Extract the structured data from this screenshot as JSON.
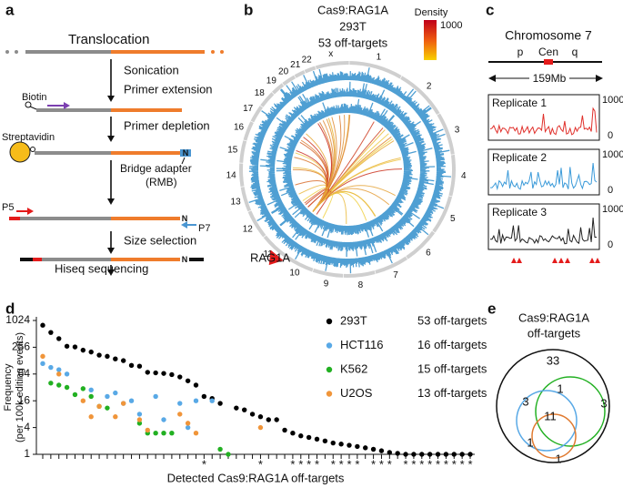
{
  "panel_labels": [
    "a",
    "b",
    "c",
    "d",
    "e"
  ],
  "panel_a": {
    "steps": [
      "Translocation",
      "Sonication",
      "Primer extension",
      "Primer depletion",
      "Size selection",
      "Hiseq sequencing"
    ],
    "labels": {
      "biotin": "Biotin",
      "streptavidin": "Streptavidin",
      "adapter": "Bridge adapter",
      "adapter_abbr": "(RMB)",
      "p5": "P5",
      "p7": "P7",
      "n": "N"
    }
  },
  "panel_b": {
    "title": [
      "Cas9:RAG1A",
      "293T",
      "53 off-targets"
    ],
    "legend_title": "Density",
    "legend_max": 1000,
    "chromosomes": [
      "1",
      "2",
      "3",
      "4",
      "5",
      "6",
      "7",
      "8",
      "9",
      "10",
      "11",
      "12",
      "13",
      "14",
      "15",
      "16",
      "17",
      "18",
      "19",
      "20",
      "21",
      "22",
      "x"
    ],
    "locus": "RAG1A"
  },
  "panel_c": {
    "title": "Chromosome 7",
    "arm_p": "p",
    "centromere": "Cen",
    "arm_q": "q",
    "length": "159Mb",
    "replicates": [
      {
        "name": "Replicate 1",
        "ymax": 1000,
        "ymin": 0
      },
      {
        "name": "Replicate 2",
        "ymax": 1000,
        "ymin": 0
      },
      {
        "name": "Replicate 3",
        "ymax": 1000,
        "ymin": 0
      }
    ]
  },
  "chart_data": {
    "type": "scatter",
    "categories": [
      null,
      null,
      null,
      null,
      null,
      null,
      null,
      null,
      null,
      null,
      null,
      null,
      null,
      null,
      null,
      null,
      null,
      null,
      null,
      null,
      null,
      null,
      null,
      null,
      null,
      null,
      null,
      null,
      null,
      null,
      null,
      null,
      null,
      null,
      null,
      null,
      null,
      null,
      null,
      null,
      null,
      null,
      null,
      null,
      null,
      null,
      null,
      null,
      null,
      null,
      null,
      null,
      null,
      null
    ],
    "series": [
      {
        "name": "293T",
        "count_label": "53 off-targets",
        "color": "#000000",
        "values": [
          800,
          550,
          400,
          270,
          260,
          220,
          200,
          170,
          160,
          140,
          128,
          100,
          96,
          70,
          68,
          66,
          62,
          55,
          45,
          36,
          20,
          18,
          14,
          null,
          11,
          10,
          8,
          7,
          6,
          6,
          3.5,
          3,
          2.6,
          2.4,
          2.2,
          2,
          1.8,
          1.7,
          1.6,
          1.5,
          1.4,
          1.3,
          1.2,
          1.1,
          1.05,
          1,
          1,
          1,
          1,
          1,
          1,
          1,
          1,
          1
        ]
      },
      {
        "name": "HCT116",
        "count_label": "16 off-targets",
        "color": "#59a9e6",
        "values": [
          110,
          90,
          80,
          64,
          null,
          null,
          28,
          null,
          20,
          24,
          14,
          16,
          8,
          null,
          20,
          6,
          null,
          14,
          4,
          16,
          null,
          16,
          null,
          null,
          null,
          null,
          null,
          null,
          null,
          null,
          null,
          null,
          null,
          null,
          null,
          null,
          null,
          null,
          null,
          null,
          null,
          null,
          null,
          null,
          null,
          null,
          null,
          null,
          null,
          null,
          null,
          null,
          null,
          null
        ]
      },
      {
        "name": "K562",
        "count_label": "15 off-targets",
        "color": "#22b022",
        "values": [
          null,
          40,
          36,
          32,
          22,
          30,
          20,
          12,
          11,
          null,
          null,
          null,
          5,
          3,
          3,
          3,
          3,
          null,
          null,
          null,
          null,
          null,
          1.3,
          1,
          null,
          null,
          null,
          null,
          null,
          null,
          null,
          null,
          null,
          null,
          null,
          null,
          null,
          null,
          null,
          null,
          null,
          null,
          null,
          null,
          null,
          null,
          null,
          null,
          null,
          null,
          null,
          null,
          null,
          null
        ]
      },
      {
        "name": "U2OS",
        "count_label": "13 off-targets",
        "color": "#f0953a",
        "values": [
          160,
          null,
          64,
          null,
          null,
          16,
          7,
          12,
          null,
          7,
          14,
          null,
          6,
          3.5,
          null,
          null,
          null,
          8,
          5,
          3,
          null,
          null,
          null,
          null,
          null,
          null,
          null,
          4,
          null,
          null,
          null,
          null,
          null,
          null,
          null,
          null,
          null,
          null,
          null,
          null,
          null,
          null,
          null,
          null,
          null,
          null,
          null,
          null,
          null,
          null,
          null,
          null,
          null,
          null
        ]
      }
    ],
    "ylabel": [
      "Frequency",
      "(per 100k editing events)"
    ],
    "xlabel": "Detected Cas9:RAG1A off-targets",
    "ylim": [
      1,
      1024
    ],
    "yticks": [
      1,
      4,
      16,
      64,
      256,
      1024
    ],
    "log": true,
    "asterisk_label": "*",
    "starred": [
      20,
      27,
      31,
      32,
      33,
      34,
      36,
      37,
      38,
      39,
      41,
      42,
      43,
      45,
      46,
      47,
      48,
      49,
      50,
      51,
      52,
      53
    ],
    "legend": "upper right"
  },
  "panel_e": {
    "title": [
      "Cas9:RAG1A",
      "off-targets"
    ],
    "counts": [
      33,
      1,
      3,
      3,
      11,
      1,
      1
    ]
  }
}
